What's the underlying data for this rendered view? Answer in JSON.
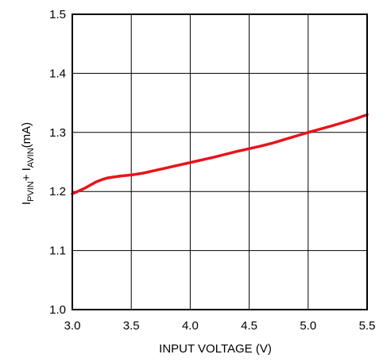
{
  "chart_data": {
    "type": "line",
    "xlabel": "INPUT VOLTAGE (V)",
    "ylabel": {
      "prefix": "I",
      "sub1": "PVIN",
      "mid": "+ I",
      "sub2": "AVIN",
      "suffix": "(mA)"
    },
    "xlim": [
      3.0,
      5.5
    ],
    "ylim": [
      1.0,
      1.5
    ],
    "x_ticks": [
      3.0,
      3.5,
      4.0,
      4.5,
      5.0,
      5.5
    ],
    "y_ticks": [
      1.0,
      1.1,
      1.2,
      1.3,
      1.4,
      1.5
    ],
    "x_tick_labels": [
      "3.0",
      "3.5",
      "4.0",
      "4.5",
      "5.0",
      "5.5"
    ],
    "y_tick_labels": [
      "1.0",
      "1.1",
      "1.2",
      "1.3",
      "1.4",
      "1.5"
    ],
    "grid": true,
    "line_color": "#e8141b",
    "series": [
      {
        "x": [
          3.0,
          3.1,
          3.2,
          3.25,
          3.3,
          3.4,
          3.5,
          3.6,
          3.8,
          4.0,
          4.2,
          4.4,
          4.6,
          4.7,
          4.8,
          5.0,
          5.2,
          5.4,
          5.5
        ],
        "y": [
          1.196,
          1.205,
          1.216,
          1.22,
          1.223,
          1.226,
          1.228,
          1.231,
          1.24,
          1.249,
          1.258,
          1.268,
          1.277,
          1.282,
          1.288,
          1.3,
          1.311,
          1.323,
          1.33
        ]
      }
    ]
  }
}
